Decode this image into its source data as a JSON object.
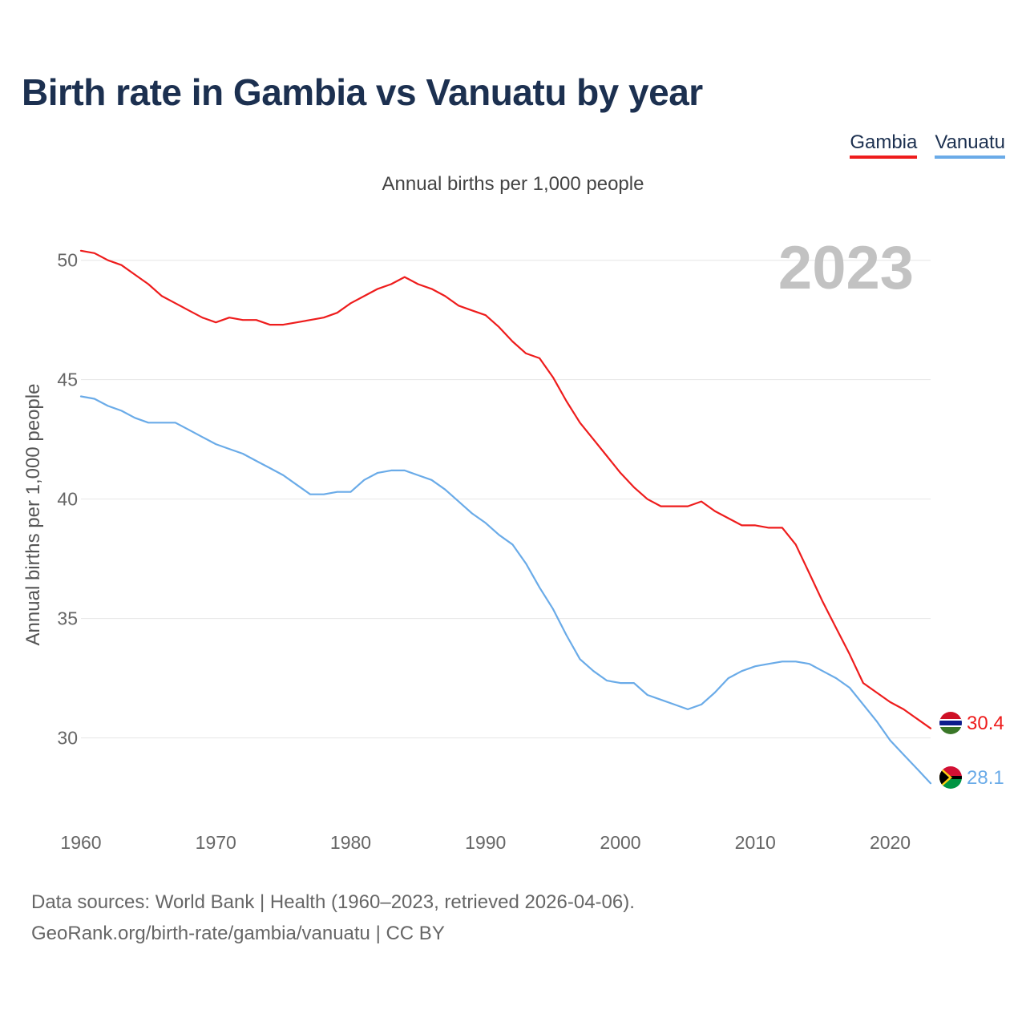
{
  "chart_data": {
    "type": "line",
    "title": "Birth rate in Gambia vs Vanuatu by year",
    "subtitle": "Annual births per 1,000 people",
    "ylabel": "Annual births per 1,000 people",
    "xlabel": "",
    "year_label": "2023",
    "xlim": [
      1960,
      2023
    ],
    "ylim": [
      27,
      51.5
    ],
    "x_ticks": [
      1960,
      1970,
      1980,
      1990,
      2000,
      2010,
      2020
    ],
    "y_ticks": [
      30,
      35,
      40,
      45,
      50
    ],
    "grid": true,
    "legend_position": "top-right",
    "x": [
      1960,
      1961,
      1962,
      1963,
      1964,
      1965,
      1966,
      1967,
      1968,
      1969,
      1970,
      1971,
      1972,
      1973,
      1974,
      1975,
      1976,
      1977,
      1978,
      1979,
      1980,
      1981,
      1982,
      1983,
      1984,
      1985,
      1986,
      1987,
      1988,
      1989,
      1990,
      1991,
      1992,
      1993,
      1994,
      1995,
      1996,
      1997,
      1998,
      1999,
      2000,
      2001,
      2002,
      2003,
      2004,
      2005,
      2006,
      2007,
      2008,
      2009,
      2010,
      2011,
      2012,
      2013,
      2014,
      2015,
      2016,
      2017,
      2018,
      2019,
      2020,
      2021,
      2022,
      2023
    ],
    "series": [
      {
        "name": "Gambia",
        "color": "#ee1c1c",
        "end_label": "30.4",
        "values": [
          50.4,
          50.3,
          50.0,
          49.8,
          49.4,
          49.0,
          48.5,
          48.2,
          47.9,
          47.6,
          47.4,
          47.6,
          47.5,
          47.5,
          47.3,
          47.3,
          47.4,
          47.5,
          47.6,
          47.8,
          48.2,
          48.5,
          48.8,
          49.0,
          49.3,
          49.0,
          48.8,
          48.5,
          48.1,
          47.9,
          47.7,
          47.2,
          46.6,
          46.1,
          45.9,
          45.1,
          44.1,
          43.2,
          42.5,
          41.8,
          41.1,
          40.5,
          40.0,
          39.7,
          39.7,
          39.7,
          39.9,
          39.5,
          39.2,
          38.9,
          38.9,
          38.8,
          38.8,
          38.1,
          36.9,
          35.7,
          34.6,
          33.5,
          32.3,
          31.9,
          31.5,
          31.2,
          30.8,
          30.4
        ]
      },
      {
        "name": "Vanuatu",
        "color": "#6aabe8",
        "end_label": "28.1",
        "values": [
          44.3,
          44.2,
          43.9,
          43.7,
          43.4,
          43.2,
          43.2,
          43.2,
          42.9,
          42.6,
          42.3,
          42.1,
          41.9,
          41.6,
          41.3,
          41.0,
          40.6,
          40.2,
          40.2,
          40.3,
          40.3,
          40.8,
          41.1,
          41.2,
          41.2,
          41.0,
          40.8,
          40.4,
          39.9,
          39.4,
          39.0,
          38.5,
          38.1,
          37.3,
          36.3,
          35.4,
          34.3,
          33.3,
          32.8,
          32.4,
          32.3,
          32.3,
          31.8,
          31.6,
          31.4,
          31.2,
          31.4,
          31.9,
          32.5,
          32.8,
          33.0,
          33.1,
          33.2,
          33.2,
          33.1,
          32.8,
          32.5,
          32.1,
          31.4,
          30.7,
          29.9,
          29.3,
          28.7,
          28.1
        ]
      }
    ],
    "source_line1": "Data sources: World Bank | Health (1960–2023, retrieved 2026-04-06).",
    "source_line2": "GeoRank.org/birth-rate/gambia/vanuatu | CC BY"
  }
}
